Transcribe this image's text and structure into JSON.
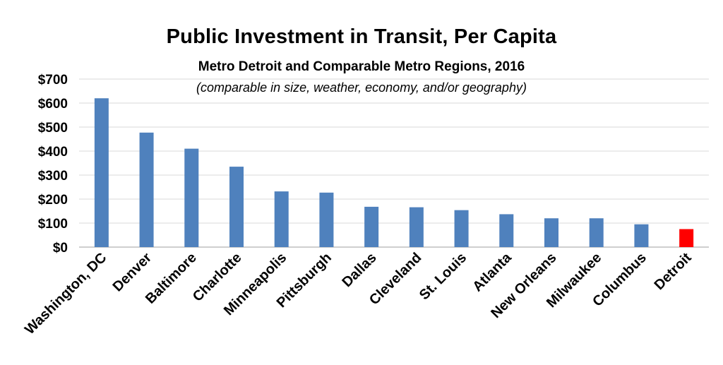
{
  "chart_data": {
    "type": "bar",
    "title": "Public Investment in Transit, Per Capita",
    "subtitle": "Metro Detroit and Comparable Metro Regions, 2016",
    "note": "(comparable in size, weather, economy, and/or geography)",
    "categories": [
      "Washington, DC",
      "Denver",
      "Baltimore",
      "Charlotte",
      "Minneapolis",
      "Pittsburgh",
      "Dallas",
      "Cleveland",
      "St. Louis",
      "Atlanta",
      "New Orleans",
      "Milwaukee",
      "Columbus",
      "Detroit"
    ],
    "values": [
      620,
      477,
      410,
      335,
      232,
      227,
      168,
      166,
      154,
      137,
      120,
      120,
      95,
      75
    ],
    "y_ticks": [
      "$0",
      "$100",
      "$200",
      "$300",
      "$400",
      "$500",
      "$600",
      "$700"
    ],
    "ylim": [
      0,
      700
    ],
    "xlabel": "",
    "ylabel": "",
    "grid": true,
    "legend": "none",
    "colors": {
      "bar": "#4f81bd",
      "highlight": "#ff0000",
      "grid": "#d9d9d9",
      "axis": "#bfbfbf"
    },
    "highlight_category": "Detroit"
  }
}
